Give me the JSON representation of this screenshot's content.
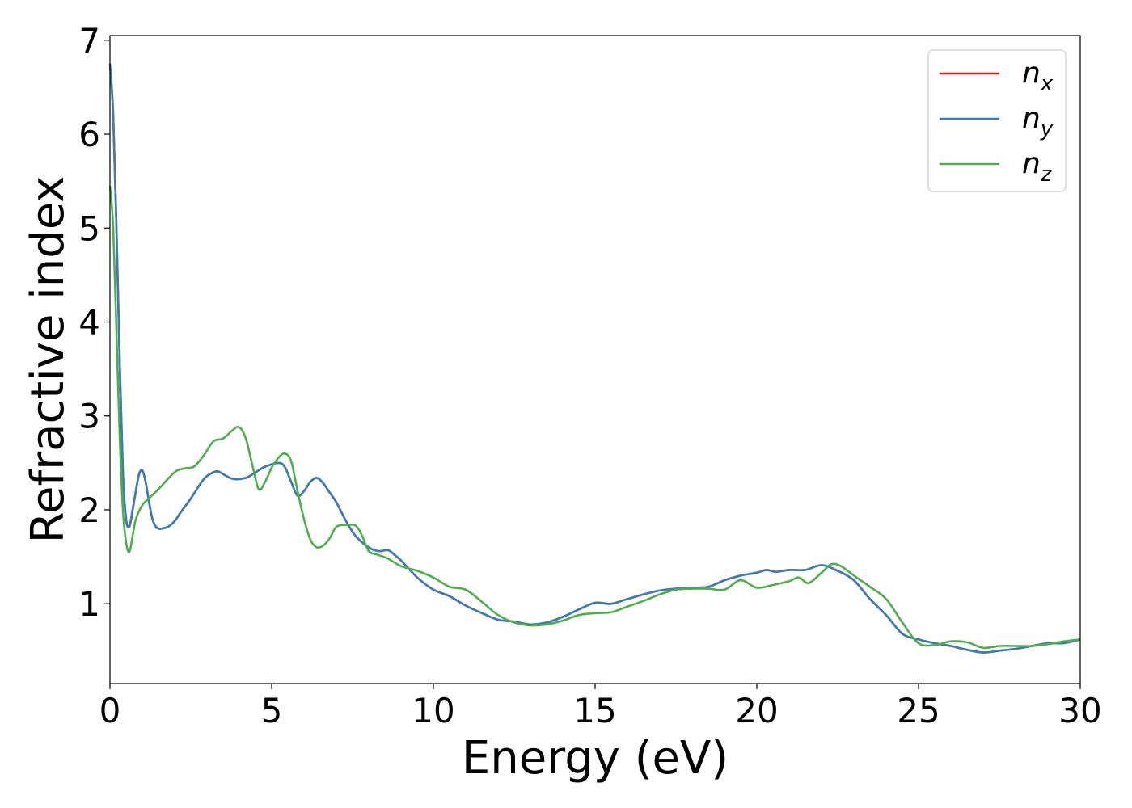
{
  "chart_data": {
    "type": "line",
    "title": "",
    "xlabel": "Energy (eV)",
    "ylabel": "Refractive index",
    "xlim": [
      0,
      30
    ],
    "ylim": [
      0.15,
      7.05
    ],
    "x_ticks": [
      0,
      5,
      10,
      15,
      20,
      25,
      30
    ],
    "y_ticks": [
      1,
      2,
      3,
      4,
      5,
      6,
      7
    ],
    "grid": false,
    "legend_position": "top-right",
    "series": [
      {
        "name": "n_x",
        "label_base": "n",
        "label_sub": "x",
        "color": "#e41a1c",
        "x": [
          0,
          0.1,
          0.2,
          0.3,
          0.4,
          0.5,
          0.6,
          0.7,
          0.8,
          0.9,
          1.0,
          1.1,
          1.2,
          1.3,
          1.4,
          1.5,
          1.6,
          1.8,
          2.0,
          2.2,
          2.5,
          2.8,
          3.0,
          3.3,
          3.5,
          3.8,
          4.2,
          4.5,
          4.8,
          5.2,
          5.4,
          5.6,
          5.8,
          6.0,
          6.2,
          6.4,
          6.6,
          6.8,
          7.0,
          7.3,
          7.6,
          8.0,
          8.3,
          8.6,
          8.8,
          9.0,
          9.5,
          10.0,
          10.5,
          11.0,
          11.5,
          12.0,
          12.5,
          13.0,
          13.5,
          14.0,
          14.5,
          15.0,
          15.5,
          16.0,
          16.5,
          17.0,
          17.5,
          18.0,
          18.5,
          19.0,
          19.5,
          20.0,
          20.3,
          20.6,
          21.0,
          21.5,
          22.0,
          22.5,
          23.0,
          23.5,
          24.0,
          24.5,
          25.0,
          25.5,
          26.0,
          26.5,
          27.0,
          27.5,
          28.0,
          28.5,
          29.0,
          29.5,
          30.0
        ],
        "values": [
          6.75,
          6.2,
          5.0,
          3.6,
          2.4,
          1.9,
          1.82,
          2.0,
          2.2,
          2.38,
          2.42,
          2.3,
          2.1,
          1.92,
          1.83,
          1.8,
          1.8,
          1.82,
          1.88,
          1.98,
          2.12,
          2.28,
          2.36,
          2.41,
          2.38,
          2.33,
          2.34,
          2.4,
          2.46,
          2.5,
          2.46,
          2.3,
          2.15,
          2.2,
          2.3,
          2.34,
          2.28,
          2.18,
          2.08,
          1.88,
          1.72,
          1.6,
          1.56,
          1.57,
          1.52,
          1.46,
          1.28,
          1.15,
          1.08,
          0.98,
          0.9,
          0.83,
          0.81,
          0.78,
          0.8,
          0.86,
          0.94,
          1.01,
          1.0,
          1.05,
          1.1,
          1.14,
          1.16,
          1.17,
          1.18,
          1.25,
          1.3,
          1.33,
          1.36,
          1.34,
          1.36,
          1.36,
          1.41,
          1.35,
          1.25,
          1.05,
          0.88,
          0.68,
          0.62,
          0.58,
          0.55,
          0.51,
          0.48,
          0.5,
          0.52,
          0.55,
          0.58,
          0.58,
          0.62
        ]
      },
      {
        "name": "n_y",
        "label_base": "n",
        "label_sub": "y",
        "color": "#377eb8",
        "x": [
          0,
          0.1,
          0.2,
          0.3,
          0.4,
          0.5,
          0.6,
          0.7,
          0.8,
          0.9,
          1.0,
          1.1,
          1.2,
          1.3,
          1.4,
          1.5,
          1.6,
          1.8,
          2.0,
          2.2,
          2.5,
          2.8,
          3.0,
          3.3,
          3.5,
          3.8,
          4.2,
          4.5,
          4.8,
          5.2,
          5.4,
          5.6,
          5.8,
          6.0,
          6.2,
          6.4,
          6.6,
          6.8,
          7.0,
          7.3,
          7.6,
          8.0,
          8.3,
          8.6,
          8.8,
          9.0,
          9.5,
          10.0,
          10.5,
          11.0,
          11.5,
          12.0,
          12.5,
          13.0,
          13.5,
          14.0,
          14.5,
          15.0,
          15.5,
          16.0,
          16.5,
          17.0,
          17.5,
          18.0,
          18.5,
          19.0,
          19.5,
          20.0,
          20.3,
          20.6,
          21.0,
          21.5,
          22.0,
          22.5,
          23.0,
          23.5,
          24.0,
          24.5,
          25.0,
          25.5,
          26.0,
          26.5,
          27.0,
          27.5,
          28.0,
          28.5,
          29.0,
          29.5,
          30.0
        ],
        "values": [
          6.75,
          6.2,
          5.0,
          3.6,
          2.4,
          1.9,
          1.82,
          2.0,
          2.2,
          2.38,
          2.42,
          2.3,
          2.1,
          1.92,
          1.83,
          1.8,
          1.8,
          1.82,
          1.88,
          1.98,
          2.12,
          2.28,
          2.36,
          2.41,
          2.38,
          2.33,
          2.34,
          2.4,
          2.46,
          2.5,
          2.46,
          2.3,
          2.15,
          2.2,
          2.3,
          2.34,
          2.28,
          2.18,
          2.08,
          1.88,
          1.72,
          1.6,
          1.56,
          1.57,
          1.52,
          1.46,
          1.28,
          1.15,
          1.08,
          0.98,
          0.9,
          0.83,
          0.81,
          0.78,
          0.8,
          0.86,
          0.94,
          1.01,
          1.0,
          1.05,
          1.1,
          1.14,
          1.16,
          1.17,
          1.18,
          1.25,
          1.3,
          1.33,
          1.36,
          1.34,
          1.36,
          1.36,
          1.41,
          1.35,
          1.25,
          1.05,
          0.88,
          0.68,
          0.62,
          0.58,
          0.55,
          0.51,
          0.48,
          0.5,
          0.52,
          0.55,
          0.58,
          0.58,
          0.62
        ]
      },
      {
        "name": "n_z",
        "label_base": "n",
        "label_sub": "z",
        "color": "#4daf4a",
        "x": [
          0,
          0.1,
          0.2,
          0.3,
          0.4,
          0.5,
          0.6,
          0.7,
          0.8,
          1.0,
          1.2,
          1.5,
          2.0,
          2.3,
          2.6,
          2.9,
          3.2,
          3.5,
          3.8,
          4.0,
          4.2,
          4.4,
          4.6,
          4.8,
          5.0,
          5.2,
          5.4,
          5.6,
          5.8,
          6.0,
          6.2,
          6.4,
          6.6,
          6.8,
          7.0,
          7.3,
          7.6,
          7.8,
          8.0,
          8.3,
          8.6,
          9.0,
          9.5,
          10.0,
          10.5,
          11.0,
          11.5,
          12.0,
          12.5,
          13.0,
          13.5,
          14.0,
          14.5,
          15.0,
          15.5,
          16.0,
          16.5,
          17.0,
          17.5,
          18.0,
          18.5,
          19.0,
          19.5,
          20.0,
          20.5,
          21.0,
          21.3,
          21.6,
          22.0,
          22.3,
          22.6,
          23.0,
          23.5,
          24.0,
          24.5,
          25.0,
          25.5,
          26.0,
          26.5,
          27.0,
          27.5,
          28.0,
          28.5,
          29.0,
          29.5,
          30.0
        ],
        "values": [
          5.45,
          5.0,
          3.9,
          2.8,
          2.0,
          1.65,
          1.55,
          1.72,
          1.9,
          2.05,
          2.12,
          2.22,
          2.4,
          2.44,
          2.46,
          2.58,
          2.73,
          2.76,
          2.85,
          2.88,
          2.76,
          2.48,
          2.22,
          2.3,
          2.45,
          2.55,
          2.6,
          2.52,
          2.2,
          1.9,
          1.68,
          1.6,
          1.62,
          1.7,
          1.82,
          1.84,
          1.83,
          1.72,
          1.56,
          1.52,
          1.48,
          1.4,
          1.35,
          1.28,
          1.18,
          1.15,
          1.02,
          0.88,
          0.8,
          0.77,
          0.78,
          0.82,
          0.88,
          0.9,
          0.91,
          0.97,
          1.03,
          1.1,
          1.15,
          1.16,
          1.16,
          1.15,
          1.25,
          1.17,
          1.2,
          1.24,
          1.28,
          1.22,
          1.33,
          1.42,
          1.4,
          1.3,
          1.18,
          1.05,
          0.8,
          0.58,
          0.56,
          0.6,
          0.59,
          0.53,
          0.55,
          0.55,
          0.55,
          0.57,
          0.6,
          0.62
        ]
      }
    ]
  }
}
